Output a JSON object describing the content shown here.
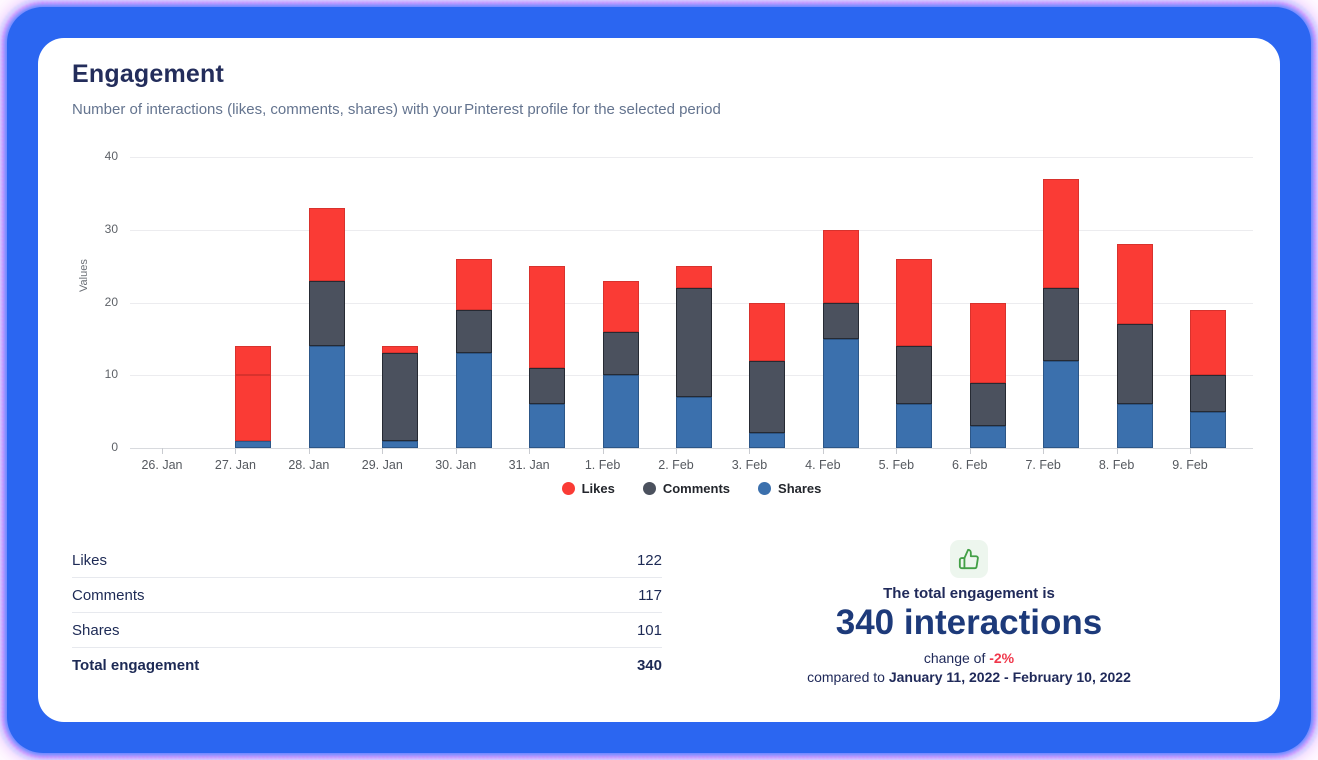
{
  "header": {
    "title": "Engagement",
    "subtitle_prefix": "Number of interactions (likes, comments, shares) with your",
    "brand": "Pinterest",
    "subtitle_suffix": "profile for the selected period"
  },
  "chart_data": {
    "type": "bar",
    "stacked": true,
    "title": "Engagement",
    "ylabel": "Values",
    "xlabel": "",
    "ylim": [
      0,
      40
    ],
    "yticks": [
      0,
      10,
      20,
      30,
      40
    ],
    "grid": "horizontal",
    "legend_position": "bottom-center",
    "categories": [
      "26. Jan",
      "27. Jan",
      "28. Jan",
      "29. Jan",
      "30. Jan",
      "31. Jan",
      "1. Feb",
      "2. Feb",
      "3. Feb",
      "4. Feb",
      "5. Feb",
      "6. Feb",
      "7. Feb",
      "8. Feb",
      "9. Feb"
    ],
    "stack_order_bottom_to_top": [
      "Shares",
      "Comments",
      "Likes"
    ],
    "series": [
      {
        "name": "Likes",
        "color": "#FA3B35",
        "border_color": "#D8322D",
        "values": [
          0,
          4,
          10,
          1,
          7,
          14,
          7,
          3,
          8,
          10,
          12,
          11,
          15,
          11,
          9
        ]
      },
      {
        "name": "Comments",
        "color": "#4B515E",
        "border_color": "#262A33",
        "values": [
          0,
          9,
          9,
          12,
          6,
          5,
          6,
          15,
          10,
          5,
          8,
          6,
          10,
          11,
          5
        ]
      },
      {
        "name": "Shares",
        "color": "#3B70AD",
        "border_color": "#2C5687",
        "values": [
          0,
          1,
          14,
          1,
          13,
          6,
          10,
          7,
          2,
          15,
          6,
          3,
          12,
          6,
          5
        ]
      }
    ],
    "segment_color_overrides": [
      {
        "category_index": 1,
        "series": "Comments",
        "color": "#FA3B35",
        "border_color": "#D8322D"
      }
    ],
    "legend": [
      {
        "label": "Likes",
        "color": "#FA3B35"
      },
      {
        "label": "Comments",
        "color": "#4B515E"
      },
      {
        "label": "Shares",
        "color": "#3B70AD"
      }
    ]
  },
  "summary_table": {
    "rows": [
      {
        "label": "Likes",
        "value": "122",
        "bold": false
      },
      {
        "label": "Comments",
        "value": "117",
        "bold": false
      },
      {
        "label": "Shares",
        "value": "101",
        "bold": false
      },
      {
        "label": "Total engagement",
        "value": "340",
        "bold": true
      }
    ]
  },
  "total_block": {
    "icon": "thumbs-up-icon",
    "icon_color": "#43A047",
    "icon_bg": "#EDF6EE",
    "line1": "The total engagement is",
    "headline": "340 interactions",
    "change_prefix": "change of",
    "change_value": "-2%",
    "change_color": "#F0374B",
    "compare_prefix": "compared to",
    "date_range": "January 11, 2022 - February 10, 2022"
  },
  "colors": {
    "frame_blue": "#2B66F1",
    "card_bg": "#FFFFFF",
    "navy_text": "#232D5B",
    "headline_navy": "#1D3A7A",
    "subtitle_gray": "#64748F"
  }
}
